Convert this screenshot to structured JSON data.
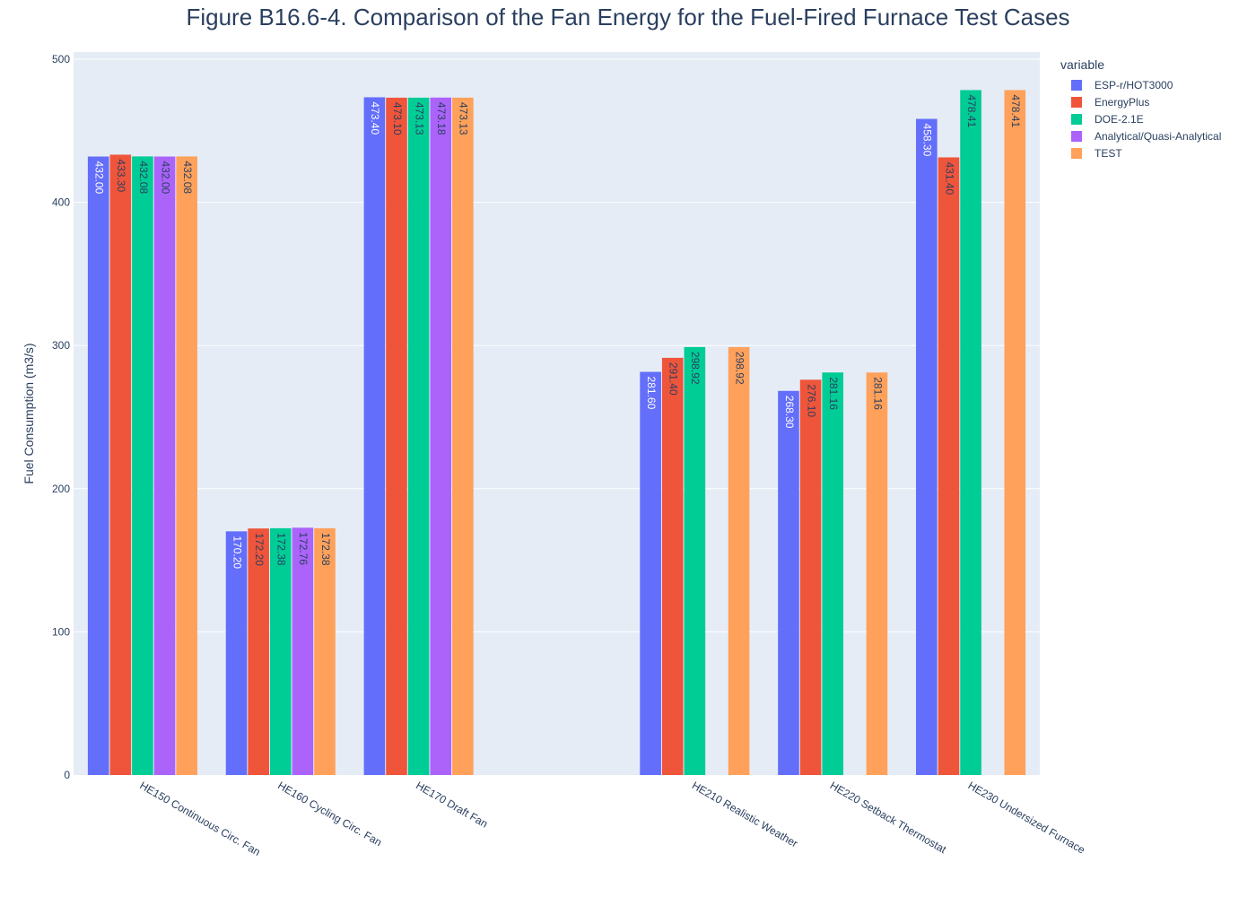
{
  "chart_data": {
    "type": "bar",
    "title": "Figure B16.6-4. Comparison of the Fan Energy for the Fuel-Fired Furnace Test Cases",
    "xlabel": "",
    "ylabel": "Fuel Consumption (m3/s)",
    "ylim": [
      0,
      505
    ],
    "yticks": [
      0,
      100,
      200,
      300,
      400,
      500
    ],
    "grid": true,
    "legend_title": "variable",
    "legend_position": "top-right, outside plot",
    "categories": [
      "HE150 Continuous Circ. Fan",
      "HE160 Cycling Circ. Fan",
      "HE170 Draft Fan",
      "",
      "HE210 Realistic Weather",
      "HE220 Setback Thermostat",
      "HE230 Undersized Furnace"
    ],
    "series": [
      {
        "name": "ESP-r/HOT3000",
        "color": "#636efa",
        "label_color": "#ffffff",
        "values": [
          432.0,
          170.2,
          473.4,
          null,
          281.6,
          268.3,
          458.3
        ],
        "labels": [
          "432.00",
          "170.20",
          "473.40",
          "",
          "281.60",
          "268.30",
          "458.30"
        ]
      },
      {
        "name": "EnergyPlus",
        "color": "#ef553b",
        "label_color": "#2a3f5f",
        "values": [
          433.3,
          172.2,
          473.1,
          null,
          291.4,
          276.1,
          431.4
        ],
        "labels": [
          "433.30",
          "172.20",
          "473.10",
          "",
          "291.40",
          "276.10",
          "431.40"
        ]
      },
      {
        "name": "DOE-2.1E",
        "color": "#00cc96",
        "label_color": "#2a3f5f",
        "values": [
          432.08,
          172.38,
          473.13,
          null,
          298.92,
          281.16,
          478.41
        ],
        "labels": [
          "432.08",
          "172.38",
          "473.13",
          "",
          "298.92",
          "281.16",
          "478.41"
        ]
      },
      {
        "name": "Analytical/Quasi-Analytical",
        "color": "#ab63fa",
        "label_color": "#2a3f5f",
        "values": [
          432.0,
          172.76,
          473.18,
          null,
          null,
          null,
          null
        ],
        "labels": [
          "432.00",
          "172.76",
          "473.18",
          "",
          "",
          "",
          ""
        ]
      },
      {
        "name": "TEST",
        "color": "#ffa15a",
        "label_color": "#2a3f5f",
        "values": [
          432.08,
          172.38,
          473.13,
          null,
          298.92,
          281.16,
          478.41
        ],
        "labels": [
          "432.08",
          "172.38",
          "473.13",
          "",
          "298.92",
          "281.16",
          "478.41"
        ]
      }
    ]
  }
}
